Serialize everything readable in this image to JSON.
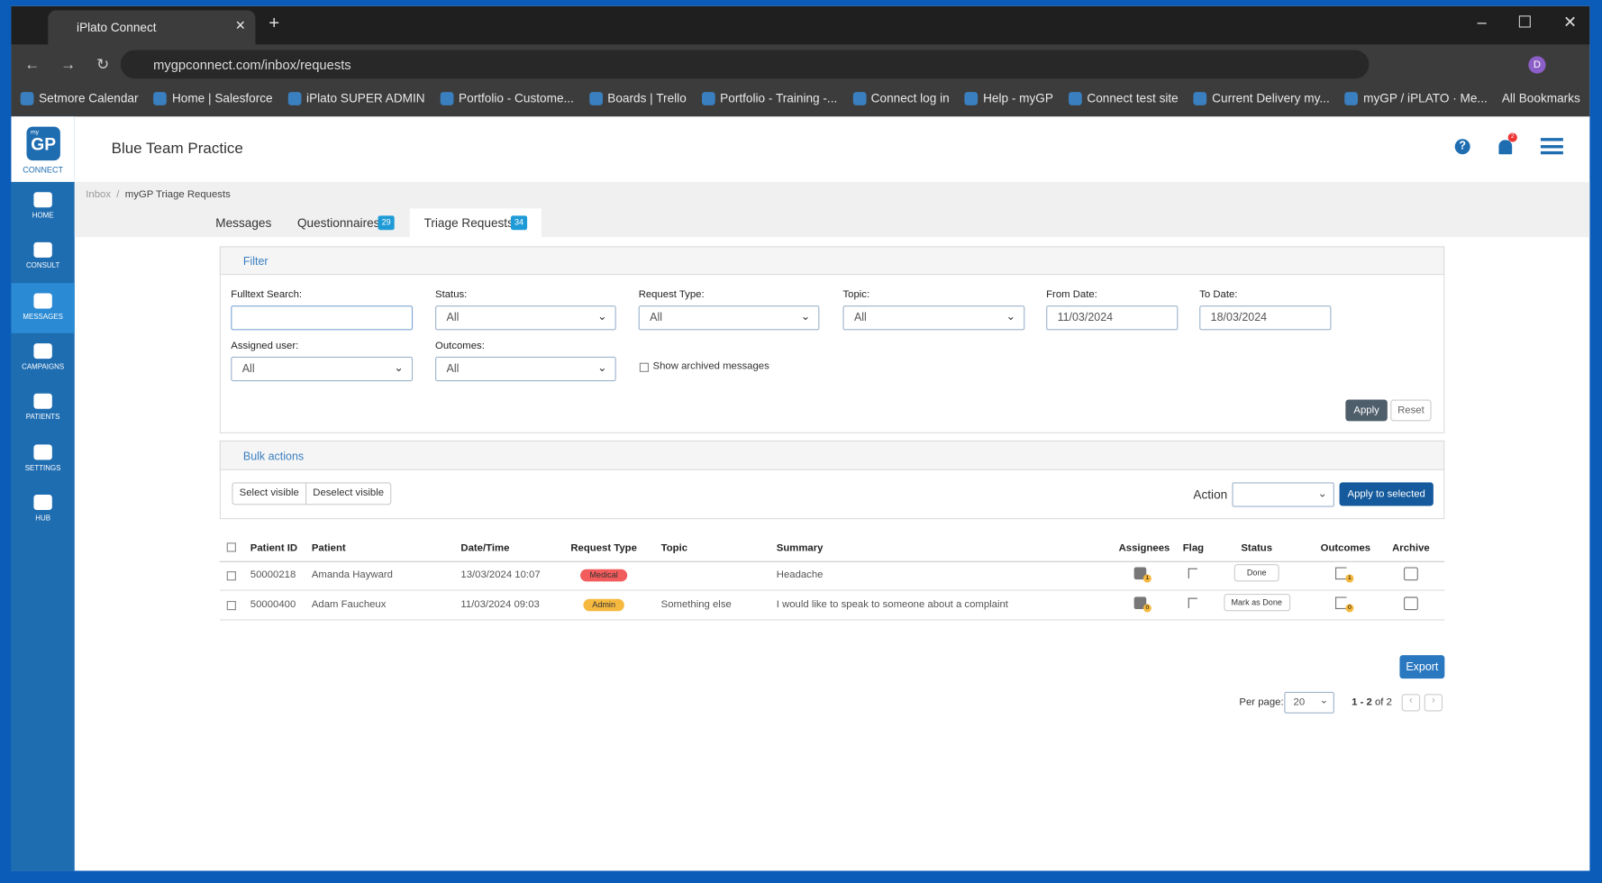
{
  "browser": {
    "tab_title": "iPlato Connect",
    "url": "mygpconnect.com/inbox/requests",
    "avatar": "D",
    "bookmarks": [
      "Setmore Calendar",
      "Home | Salesforce",
      "iPlato SUPER ADMIN",
      "Portfolio - Custome...",
      "Boards | Trello",
      "Portfolio - Training -...",
      "Connect log in",
      "Help - myGP",
      "Connect test site",
      "Current Delivery my...",
      "myGP / iPLATO · Me..."
    ],
    "all_bookmarks": "All Bookmarks"
  },
  "app": {
    "logo_small": "my",
    "logo": "GP",
    "logo_caption": "CONNECT",
    "practice": "Blue Team Practice",
    "notifications": "2",
    "nav": [
      "HOME",
      "CONSULT",
      "MESSAGES",
      "CAMPAIGNS",
      "PATIENTS",
      "SETTINGS",
      "HUB"
    ]
  },
  "breadcrumb": [
    "Inbox",
    "myGP Triage Requests"
  ],
  "tabs": [
    {
      "label": "Messages"
    },
    {
      "label": "Questionnaires",
      "badge": 29
    },
    {
      "label": "Triage Requests",
      "badge": 34
    }
  ],
  "filter": {
    "title": "Filter",
    "fields": [
      {
        "label": "Fulltext Search:",
        "value": ""
      },
      {
        "label": "Status:",
        "value": "All"
      },
      {
        "label": "Request Type:",
        "value": "All"
      },
      {
        "label": "Topic:",
        "value": "All"
      },
      {
        "label": "From Date:",
        "value": "11/03/2024"
      },
      {
        "label": "To Date:",
        "value": "18/03/2024"
      },
      {
        "label": "Assigned user:",
        "value": "All"
      },
      {
        "label": "Outcomes:",
        "value": "All"
      }
    ],
    "checkbox": "Show archived messages",
    "apply": "Apply",
    "reset": "Reset"
  },
  "bulk": {
    "title": "Bulk actions",
    "select": "Select visible",
    "deselect": "Deselect visible",
    "action": "Action",
    "apply": "Apply to selected"
  },
  "table": {
    "headers": [
      "Patient ID",
      "Patient",
      "Date/Time",
      "Request Type",
      "Topic",
      "Summary",
      "Assignees",
      "Flag",
      "Status",
      "Outcomes",
      "Archive"
    ],
    "rows": [
      {
        "id": "50000218",
        "patient": "Amanda Hayward",
        "datetime": "13/03/2024 10:07",
        "type": "Medical",
        "topic": "",
        "summary": "Headache",
        "assignees": 1,
        "status": "Done",
        "outcomes": 1
      },
      {
        "id": "50000400",
        "patient": "Adam Faucheux",
        "datetime": "11/03/2024 09:03",
        "type": "Admin",
        "topic": "Something else",
        "summary": "I would like to speak to someone about a complaint",
        "assignees": 0,
        "status": "Mark as Done",
        "outcomes": 0
      }
    ]
  },
  "footer": {
    "export": "Export",
    "per_page_label": "Per page:",
    "per_page": 20,
    "range": "1 - 2",
    "total": "of 2"
  }
}
